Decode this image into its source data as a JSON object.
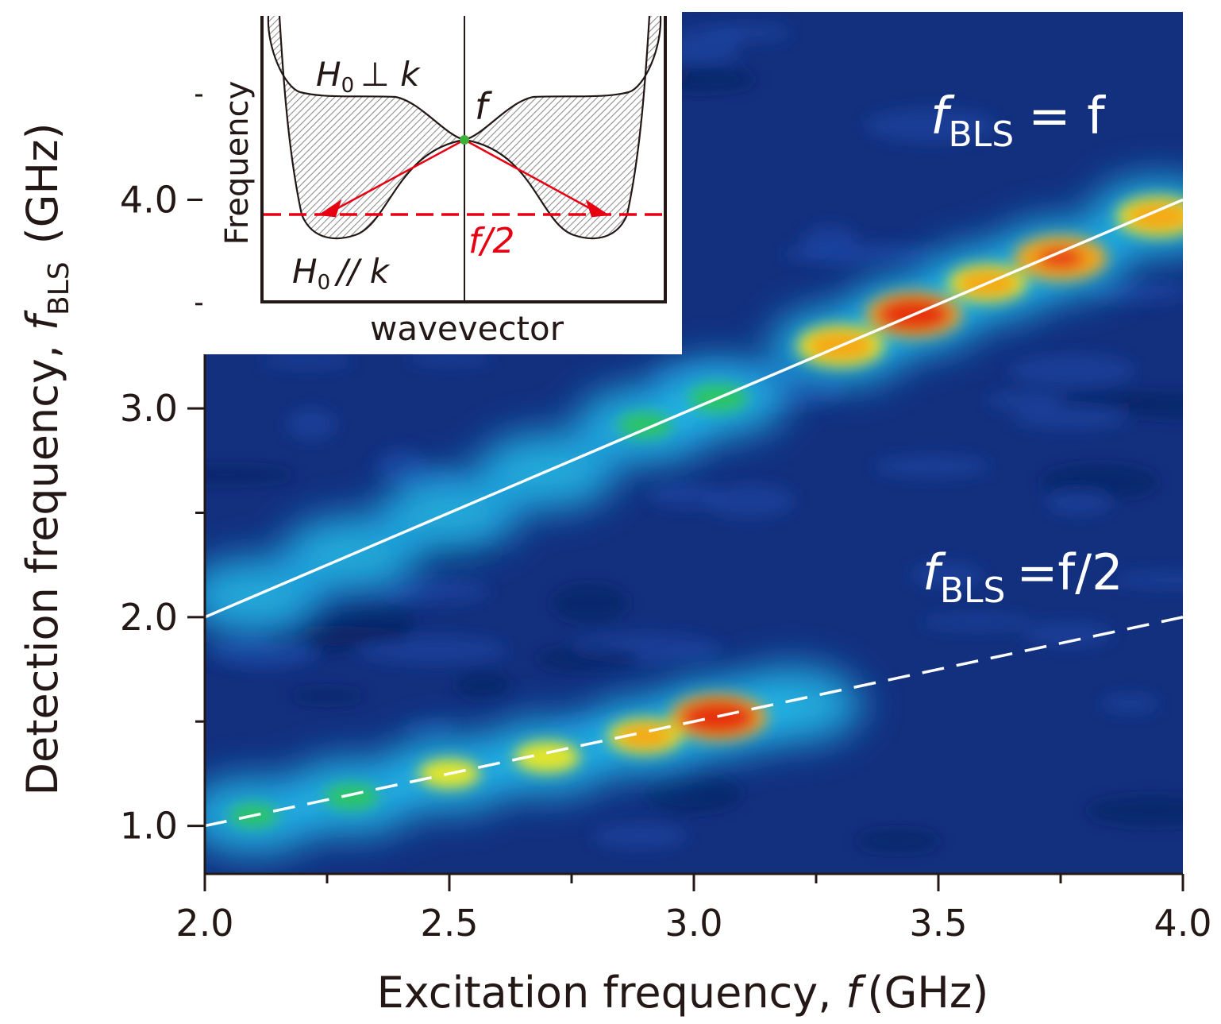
{
  "chart_data": {
    "type": "heatmap",
    "title": "",
    "xlabel": "Excitation frequency,",
    "xlabel_symbol": "f",
    "xlabel_unit": "(GHz)",
    "ylabel": "Detection frequency,",
    "ylabel_symbol": "f",
    "ylabel_subscript": "BLS",
    "ylabel_unit": "(GHz)",
    "xlim": [
      2.0,
      4.0
    ],
    "ylim": [
      0.77,
      4.9
    ],
    "x_ticks": [
      "2.0",
      "2.5",
      "3.0",
      "3.5",
      "4.0"
    ],
    "x_tick_values": [
      2.0,
      2.5,
      3.0,
      3.5,
      4.0
    ],
    "y_ticks": [
      "1.0",
      "2.0",
      "3.0",
      "4.0"
    ],
    "y_tick_values": [
      1.0,
      2.0,
      3.0,
      4.0
    ],
    "colormap": [
      "#0a1f8f",
      "#1660d8",
      "#22c4ee",
      "#2ec85a",
      "#f7ec14",
      "#f5a516",
      "#e63312"
    ],
    "background_color": "#13307e",
    "intensity_ridges": [
      {
        "label": "f_BLS = f",
        "points": [
          {
            "x": 2.1,
            "y": 2.1,
            "intensity": 0.35
          },
          {
            "x": 2.3,
            "y": 2.3,
            "intensity": 0.38
          },
          {
            "x": 2.5,
            "y": 2.5,
            "intensity": 0.36
          },
          {
            "x": 2.7,
            "y": 2.7,
            "intensity": 0.4
          },
          {
            "x": 2.9,
            "y": 2.92,
            "intensity": 0.55
          },
          {
            "x": 3.05,
            "y": 3.05,
            "intensity": 0.6
          },
          {
            "x": 3.3,
            "y": 3.3,
            "intensity": 0.88
          },
          {
            "x": 3.45,
            "y": 3.45,
            "intensity": 0.98
          },
          {
            "x": 3.6,
            "y": 3.6,
            "intensity": 0.8
          },
          {
            "x": 3.75,
            "y": 3.72,
            "intensity": 0.95
          },
          {
            "x": 3.95,
            "y": 3.92,
            "intensity": 0.85
          }
        ]
      },
      {
        "label": "f_BLS = f/2",
        "points": [
          {
            "x": 2.1,
            "y": 1.05,
            "intensity": 0.5
          },
          {
            "x": 2.3,
            "y": 1.14,
            "intensity": 0.55
          },
          {
            "x": 2.5,
            "y": 1.25,
            "intensity": 0.62
          },
          {
            "x": 2.7,
            "y": 1.33,
            "intensity": 0.66
          },
          {
            "x": 2.9,
            "y": 1.43,
            "intensity": 0.75
          },
          {
            "x": 3.05,
            "y": 1.52,
            "intensity": 1.0
          },
          {
            "x": 3.2,
            "y": 1.58,
            "intensity": 0.4
          }
        ]
      }
    ],
    "lines": [
      {
        "label": "f_BLS = f",
        "style": "solid",
        "color": "#ffffff",
        "x": [
          2.0,
          4.0
        ],
        "y": [
          2.0,
          4.0
        ]
      },
      {
        "label": "f_BLS = f/2",
        "style": "dashed",
        "color": "#ffffff",
        "x": [
          2.0,
          4.0
        ],
        "y": [
          1.0,
          2.0
        ]
      }
    ],
    "annotations": [
      {
        "id": "line-f",
        "symbol": "f",
        "subscript": "BLS",
        "rest": "= f"
      },
      {
        "id": "line-half",
        "symbol": "f",
        "subscript": "BLS",
        "rest": "=f/2"
      }
    ]
  },
  "inset": {
    "xlabel": "wavevector",
    "ylabel": "Frequency",
    "label_perp_symbol": "H",
    "label_perp_sub": "0",
    "label_perp_rest": "⊥ k",
    "label_par_symbol": "H",
    "label_par_sub": "0",
    "label_par_rest": "// k",
    "point_label": "f",
    "half_label": "f/2",
    "point_color": "#3db23a",
    "arrow_color": "#e60012",
    "hatch_color": "#8f8f8f"
  }
}
